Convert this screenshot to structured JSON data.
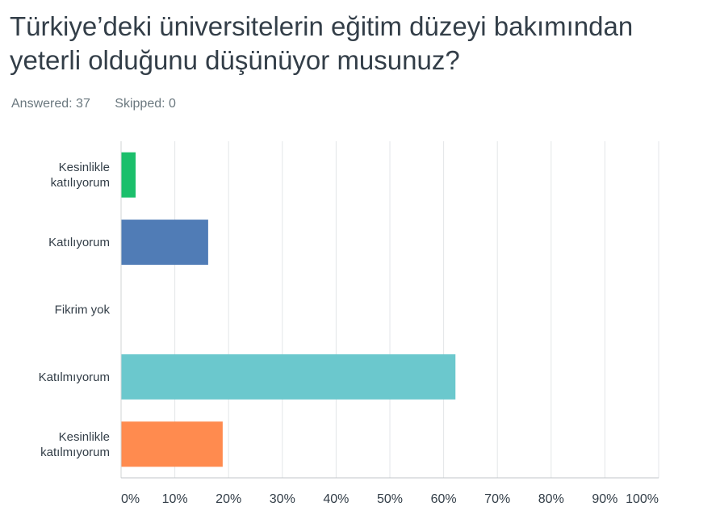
{
  "question": {
    "title": "Türkiye’deki üniversitelerin eğitim düzeyi bakımından yeterli olduğunu düşünüyor musunuz?",
    "answered_label": "Answered: 37",
    "skipped_label": "Skipped: 0"
  },
  "chart_data": {
    "type": "bar",
    "orientation": "horizontal",
    "categories": [
      [
        "Kesinlikle",
        "katılıyorum"
      ],
      [
        "Katılıyorum"
      ],
      [
        "Fikrim yok"
      ],
      [
        "Katılmıyorum"
      ],
      [
        "Kesinlikle",
        "katılmıyorum"
      ]
    ],
    "values": [
      2.7,
      16.2,
      0,
      62.2,
      18.9
    ],
    "colors": [
      "#1bbf6b",
      "#507cb6",
      "#6bc8cd",
      "#6bc8cd",
      "#ff8b4f"
    ],
    "xlim": [
      0,
      100
    ],
    "xticks": [
      0,
      10,
      20,
      30,
      40,
      50,
      60,
      70,
      80,
      90,
      100
    ],
    "xtick_labels": [
      "0%",
      "10%",
      "20%",
      "30%",
      "40%",
      "50%",
      "60%",
      "70%",
      "80%",
      "90%",
      "100%"
    ],
    "grid": true
  }
}
